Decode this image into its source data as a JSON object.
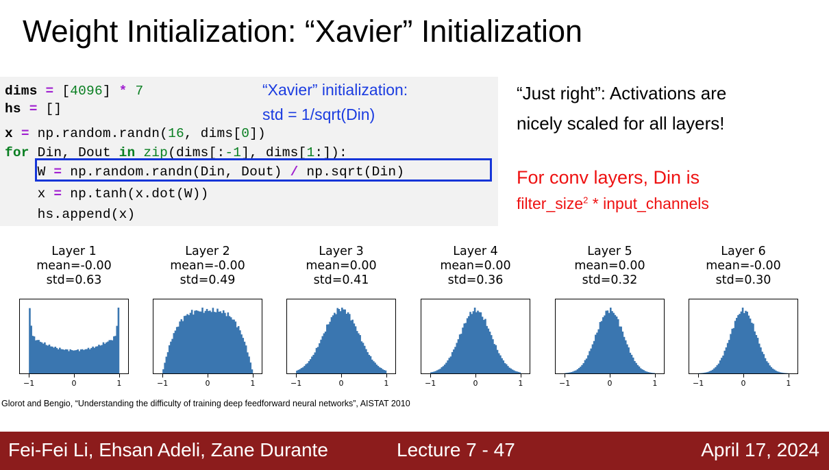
{
  "slide": {
    "title": "Weight Initialization: “Xavier” Initialization",
    "code": {
      "line1": [
        "dims ",
        "=",
        " [",
        "4096",
        "] ",
        "*",
        " ",
        "7"
      ],
      "line2": [
        "hs ",
        "=",
        " []"
      ],
      "line3": [
        "x ",
        "=",
        " np.random.randn(",
        "16",
        ", dims[",
        "0",
        "])"
      ],
      "line4": [
        "for",
        " Din, Dout ",
        "in",
        " ",
        "zip",
        "(dims[:",
        "-1",
        "], dims[",
        "1",
        ":]):"
      ],
      "line5": [
        "    W ",
        "=",
        " np.random.randn(Din, Dout) ",
        "/",
        " np.sqrt(Din)"
      ],
      "line6": [
        "    x ",
        "=",
        " np.tanh(x.dot(W))"
      ],
      "line7": [
        "    hs.append(x)"
      ]
    },
    "note": {
      "line1": "“Xavier” initialization:",
      "line2": "std = 1/sqrt(Din)"
    },
    "right_text": {
      "line1": "“Just right”: Activations are",
      "line2": "nicely scaled for all layers!",
      "red_line1": "For conv layers, Din is",
      "red_line2_pre": "filter_size",
      "red_line2_sup": "2",
      "red_line2_post": " * input_channels"
    },
    "citation": "Glorot and Bengio, “Understanding the difficulty of training deep feedforward neural networks”, AISTAT 2010",
    "footer": {
      "authors": "Fei-Fei Li, Ehsan Adeli, Zane Durante",
      "lecture": "Lecture 7 -  47",
      "date": "April 17, 2024"
    },
    "colors": {
      "bar": "#3a76b0",
      "footer_bg": "#8c1c1c",
      "note": "#1b3ce0",
      "red": "#ee1111",
      "highlight": "#1535d8"
    }
  },
  "chart_data": [
    {
      "type": "bar",
      "title": "Layer 1",
      "mean_label": "mean=-0.00",
      "std_label": "std=0.63",
      "std": 0.63,
      "shape": "u-shape",
      "xlim": [
        -1.2,
        1.2
      ],
      "xticks": [
        "−1",
        "0",
        "1"
      ]
    },
    {
      "type": "bar",
      "title": "Layer 2",
      "mean_label": "mean=-0.00",
      "std_label": "std=0.49",
      "std": 0.49,
      "shape": "plateau",
      "xlim": [
        -1.2,
        1.2
      ],
      "xticks": [
        "−1",
        "0",
        "1"
      ]
    },
    {
      "type": "bar",
      "title": "Layer 3",
      "mean_label": "mean=0.00",
      "std_label": "std=0.41",
      "std": 0.41,
      "shape": "bell",
      "xlim": [
        -1.2,
        1.2
      ],
      "xticks": [
        "−1",
        "0",
        "1"
      ]
    },
    {
      "type": "bar",
      "title": "Layer 4",
      "mean_label": "mean=0.00",
      "std_label": "std=0.36",
      "std": 0.36,
      "shape": "bell",
      "xlim": [
        -1.2,
        1.2
      ],
      "xticks": [
        "−1",
        "0",
        "1"
      ]
    },
    {
      "type": "bar",
      "title": "Layer 5",
      "mean_label": "mean=0.00",
      "std_label": "std=0.32",
      "std": 0.32,
      "shape": "bell",
      "xlim": [
        -1.2,
        1.2
      ],
      "xticks": [
        "−1",
        "0",
        "1"
      ]
    },
    {
      "type": "bar",
      "title": "Layer 6",
      "mean_label": "mean=-0.00",
      "std_label": "std=0.30",
      "std": 0.3,
      "shape": "bell",
      "xlim": [
        -1.2,
        1.2
      ],
      "xticks": [
        "−1",
        "0",
        "1"
      ]
    }
  ]
}
